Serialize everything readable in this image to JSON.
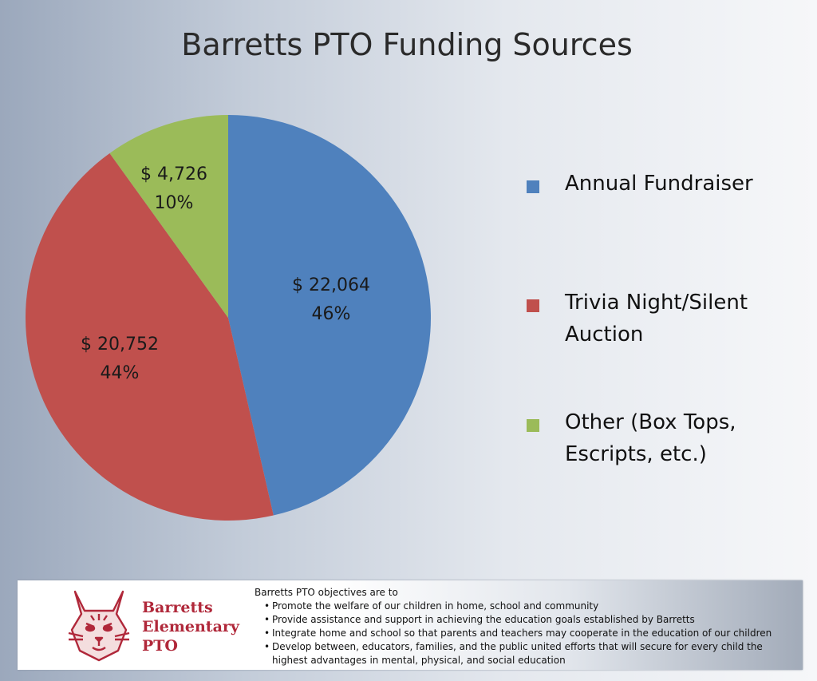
{
  "chart_data": {
    "type": "pie",
    "title": "Barretts PTO Funding Sources",
    "slices": [
      {
        "name": "Annual Fundraiser",
        "value": 22064,
        "label": "$ 22,064",
        "percent": "46%",
        "color": "#4f81bd"
      },
      {
        "name": "Trivia Night/Silent Auction",
        "value": 20752,
        "label": "$ 20,752",
        "percent": "44%",
        "color": "#c0504d"
      },
      {
        "name": "Other (Box Tops, Escripts, etc.)",
        "value": 4726,
        "label": "$ 4,726",
        "percent": "10%",
        "color": "#9bbb59"
      }
    ],
    "legend": [
      {
        "lines": [
          "Annual Fundraiser"
        ],
        "color": "#4f81bd"
      },
      {
        "lines": [
          "Trivia Night/Silent",
          "Auction"
        ],
        "color": "#c0504d"
      },
      {
        "lines": [
          "Other (Box Tops,",
          "Escripts, etc.)"
        ],
        "color": "#9bbb59"
      }
    ],
    "legend_placement": "right"
  },
  "footer": {
    "logo_text": [
      "Barretts",
      "Elementary",
      "PTO"
    ],
    "objectives_heading": "Barretts PTO objectives are to",
    "objectives": [
      "Promote the welfare of our children in home, school and community",
      "Provide assistance and support in achieving the education goals established by Barretts",
      "Integrate home and school so that parents and teachers may cooperate in the education of our children",
      "Develop between, educators, families, and the public united efforts that will secure for every child the highest advantages in mental, physical, and social education"
    ]
  }
}
